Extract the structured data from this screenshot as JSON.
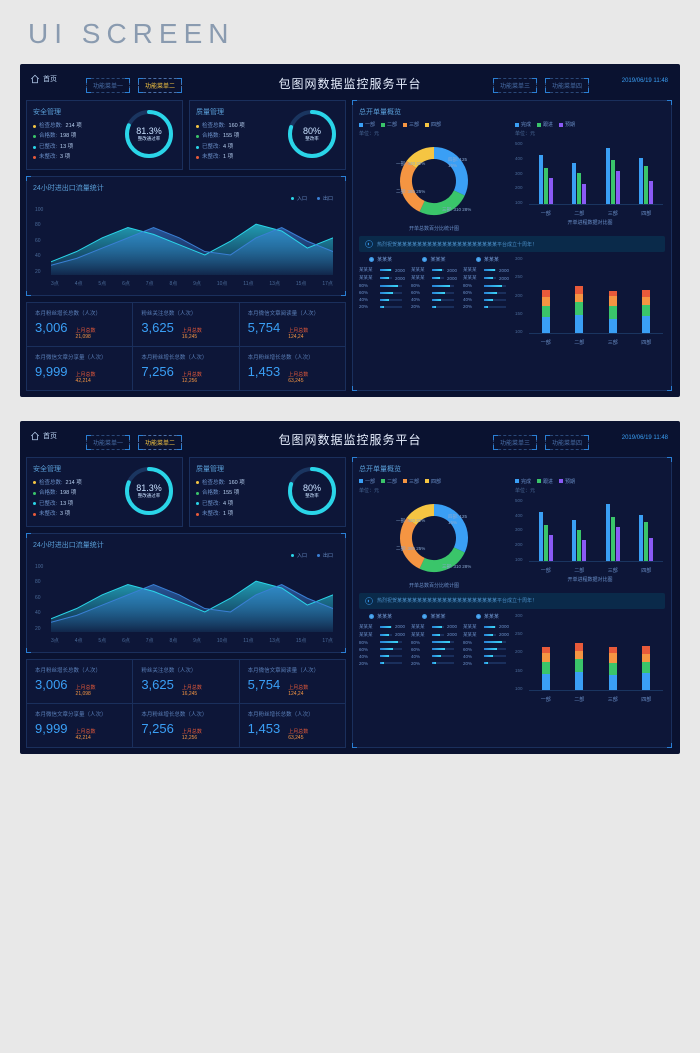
{
  "banner": "UI SCREEN",
  "header": {
    "home": "首页",
    "title": "包图网数据监控服务平台",
    "timestamp": "2019/06/19 11:48",
    "menus_left": [
      "功能菜单一",
      "功能菜单二"
    ],
    "menus_right": [
      "功能菜单三",
      "功能菜单四"
    ],
    "active_menu": 1
  },
  "colors": {
    "bg": "#0a1230",
    "panel": "#0d1638",
    "border": "#1a2f5c",
    "accent": "#3a9ff5",
    "cyan": "#2ad5e8",
    "green": "#3ac56a",
    "orange": "#f59542",
    "yellow": "#f5c542",
    "red": "#e85a3a",
    "purple": "#8a5af5"
  },
  "safety": {
    "title": "安全管理",
    "stats": [
      {
        "label": "检查总数:",
        "value": "214 项",
        "color": "#f5c542"
      },
      {
        "label": "合格数:",
        "value": "198 项",
        "color": "#3ac56a"
      },
      {
        "label": "已整改:",
        "value": "13 项",
        "color": "#2ad5e8"
      },
      {
        "label": "未整改:",
        "value": "3 项",
        "color": "#e85a3a"
      }
    ],
    "gauge_pct": "81.3%",
    "gauge_sub": "整改通过率",
    "gauge_color": "#2ad5e8",
    "gauge_fill": 0.813
  },
  "quality": {
    "title": "质量管理",
    "stats": [
      {
        "label": "检查总数:",
        "value": "160 项",
        "color": "#f5c542"
      },
      {
        "label": "合格数:",
        "value": "155 项",
        "color": "#3ac56a"
      },
      {
        "label": "已整改:",
        "value": "4 项",
        "color": "#2ad5e8"
      },
      {
        "label": "未整改:",
        "value": "1 项",
        "color": "#e85a3a"
      }
    ],
    "gauge_pct": "80%",
    "gauge_sub": "整改率",
    "gauge_color": "#2ad5e8",
    "gauge_fill": 0.8
  },
  "traffic": {
    "title": "24小时进出口流量统计",
    "legend": [
      {
        "label": "入口",
        "color": "#2ad5e8"
      },
      {
        "label": "出口",
        "color": "#3a7fd5"
      }
    ],
    "y_ticks": [
      "100",
      "80",
      "60",
      "40",
      "20"
    ],
    "x_ticks": [
      "3点",
      "4点",
      "5点",
      "6点",
      "7点",
      "8点",
      "9点",
      "10点",
      "11点",
      "13点",
      "15点",
      "17点"
    ],
    "series1": [
      20,
      35,
      55,
      70,
      60,
      45,
      30,
      50,
      75,
      65,
      40,
      55
    ],
    "series2": [
      15,
      25,
      40,
      55,
      70,
      55,
      35,
      30,
      55,
      70,
      50,
      35
    ]
  },
  "stats": [
    {
      "label": "本月粉丝增长总数（人次）",
      "big": "3,006",
      "side_label": "上月总数",
      "side_val": "21,098"
    },
    {
      "label": "粉丝关注总数（人次）",
      "big": "3,625",
      "side_label": "上月总数",
      "side_val": "16,245"
    },
    {
      "label": "本月微信文章阅读量（人次）",
      "big": "5,754",
      "side_label": "上月总数",
      "side_val": "124,24"
    },
    {
      "label": "本月微信文章分享量（人次）",
      "big": "9,999",
      "side_label": "上月总数",
      "side_val": "42,214"
    },
    {
      "label": "本月粉丝增长总数（人次）",
      "big": "7,256",
      "side_label": "上月总数",
      "side_val": "12,256"
    },
    {
      "label": "本月粉丝增长总数（人次）",
      "big": "1,453",
      "side_label": "上月总数",
      "side_val": "63,245"
    }
  ],
  "overview": {
    "title": "总开单量概览",
    "donut_legend": [
      {
        "label": "一部",
        "color": "#3a9ff5"
      },
      {
        "label": "二部",
        "color": "#3ac56a"
      },
      {
        "label": "三部",
        "color": "#f59542"
      },
      {
        "label": "四部",
        "color": "#f5c542"
      }
    ],
    "unit": "单位：元",
    "donut_data": [
      {
        "label": "一部: 420 32%",
        "value": 32,
        "color": "#3a9ff5"
      },
      {
        "label": "二部: 380 25%",
        "value": 25,
        "color": "#3ac56a"
      },
      {
        "label": "三部: 310 28%",
        "value": 28,
        "color": "#f59542"
      },
      {
        "label": "四部: 125 15%",
        "value": 15,
        "color": "#f5c542"
      }
    ],
    "donut_caption": "开单总数百分比统计图",
    "bar_legend": [
      {
        "label": "完成",
        "color": "#3a9ff5"
      },
      {
        "label": "跟进",
        "color": "#3ac56a"
      },
      {
        "label": "预期",
        "color": "#8a5af5"
      }
    ],
    "bar_y": [
      "500",
      "400",
      "300",
      "200",
      "100"
    ],
    "bar_groups": [
      {
        "name": "一部",
        "vals": [
          380,
          280,
          200
        ]
      },
      {
        "name": "二部",
        "vals": [
          320,
          240,
          160
        ]
      },
      {
        "name": "三部",
        "vals": [
          440,
          340,
          260
        ]
      },
      {
        "name": "四部",
        "vals": [
          360,
          300,
          180
        ]
      }
    ],
    "bar_caption": "开单进程数据对比图"
  },
  "notice": "热烈祝贺某某某某某某某某某某某某某某某某某某某某平台成立十周年！",
  "progress": {
    "legend": [
      {
        "label": "某某某",
        "color": "#3a9ff5"
      },
      {
        "label": "某某某",
        "color": "#3a9ff5"
      },
      {
        "label": "某某某",
        "color": "#3a9ff5"
      }
    ],
    "cols": [
      [
        {
          "label": "某某某",
          "pct": 90,
          "val": "2000"
        },
        {
          "label": "某某某",
          "pct": 75,
          "val": "2000"
        },
        {
          "label": "80%",
          "pct": 80,
          "val": ""
        },
        {
          "label": "60%",
          "pct": 60,
          "val": ""
        },
        {
          "label": "40%",
          "pct": 40,
          "val": ""
        },
        {
          "label": "20%",
          "pct": 20,
          "val": ""
        }
      ],
      [
        {
          "label": "某某某",
          "pct": 85,
          "val": "2000"
        },
        {
          "label": "某某某",
          "pct": 70,
          "val": "2000"
        },
        {
          "label": "80%",
          "pct": 80,
          "val": ""
        },
        {
          "label": "60%",
          "pct": 60,
          "val": ""
        },
        {
          "label": "40%",
          "pct": 40,
          "val": ""
        },
        {
          "label": "20%",
          "pct": 20,
          "val": ""
        }
      ],
      [
        {
          "label": "某某某",
          "pct": 88,
          "val": "2000"
        },
        {
          "label": "某某某",
          "pct": 72,
          "val": "2000"
        },
        {
          "label": "80%",
          "pct": 80,
          "val": ""
        },
        {
          "label": "60%",
          "pct": 60,
          "val": ""
        },
        {
          "label": "40%",
          "pct": 40,
          "val": ""
        },
        {
          "label": "20%",
          "pct": 20,
          "val": ""
        }
      ]
    ]
  },
  "stacked": {
    "y": [
      "300",
      "250",
      "200",
      "150",
      "100"
    ],
    "groups": [
      {
        "name": "一部",
        "segs": [
          {
            "h": 60,
            "c": "#3a9ff5"
          },
          {
            "h": 45,
            "c": "#3ac56a"
          },
          {
            "h": 35,
            "c": "#f59542"
          },
          {
            "h": 25,
            "c": "#e85a3a"
          }
        ]
      },
      {
        "name": "二部",
        "segs": [
          {
            "h": 70,
            "c": "#3a9ff5"
          },
          {
            "h": 50,
            "c": "#3ac56a"
          },
          {
            "h": 30,
            "c": "#f59542"
          },
          {
            "h": 30,
            "c": "#e85a3a"
          }
        ]
      },
      {
        "name": "三部",
        "segs": [
          {
            "h": 55,
            "c": "#3a9ff5"
          },
          {
            "h": 48,
            "c": "#3ac56a"
          },
          {
            "h": 38,
            "c": "#f59542"
          },
          {
            "h": 22,
            "c": "#e85a3a"
          }
        ]
      },
      {
        "name": "四部",
        "segs": [
          {
            "h": 65,
            "c": "#3a9ff5"
          },
          {
            "h": 42,
            "c": "#3ac56a"
          },
          {
            "h": 32,
            "c": "#f59542"
          },
          {
            "h": 28,
            "c": "#e85a3a"
          }
        ]
      }
    ]
  }
}
